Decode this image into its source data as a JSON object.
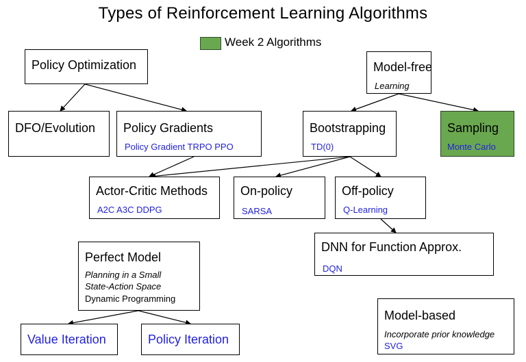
{
  "title": "Types of Reinforcement Learning Algorithms",
  "legend": {
    "label": "Week 2 Algorithms",
    "color": "#6aa84f"
  },
  "nodes": {
    "policy_optimization": {
      "title": "Policy Optimization"
    },
    "model_free": {
      "title": "Model-free",
      "subtitle": "Learning"
    },
    "dfo_evolution": {
      "title": "DFO/Evolution"
    },
    "policy_gradients": {
      "title": "Policy Gradients",
      "examples": "Policy Gradient  TRPO PPO"
    },
    "bootstrapping": {
      "title": "Bootstrapping",
      "examples": "TD(0)"
    },
    "sampling": {
      "title": "Sampling",
      "examples": "Monte Carlo"
    },
    "actor_critic": {
      "title": "Actor-Critic Methods",
      "examples": "A2C A3C DDPG"
    },
    "on_policy": {
      "title": "On-policy",
      "examples": "SARSA"
    },
    "off_policy": {
      "title": "Off-policy",
      "examples": "Q-Learning"
    },
    "dnn_function_approx": {
      "title": "DNN for Function Approx.",
      "examples": "DQN"
    },
    "perfect_model": {
      "title": "Perfect Model",
      "subtitle_line1": "Planning in a Small",
      "subtitle_line2": "State-Action Space",
      "method": "Dynamic Programming"
    },
    "value_iteration": {
      "title": "Value Iteration"
    },
    "policy_iteration": {
      "title": "Policy Iteration"
    },
    "model_based": {
      "title": "Model-based",
      "subtitle": "Incorporate prior knowledge",
      "examples": "SVG"
    }
  }
}
